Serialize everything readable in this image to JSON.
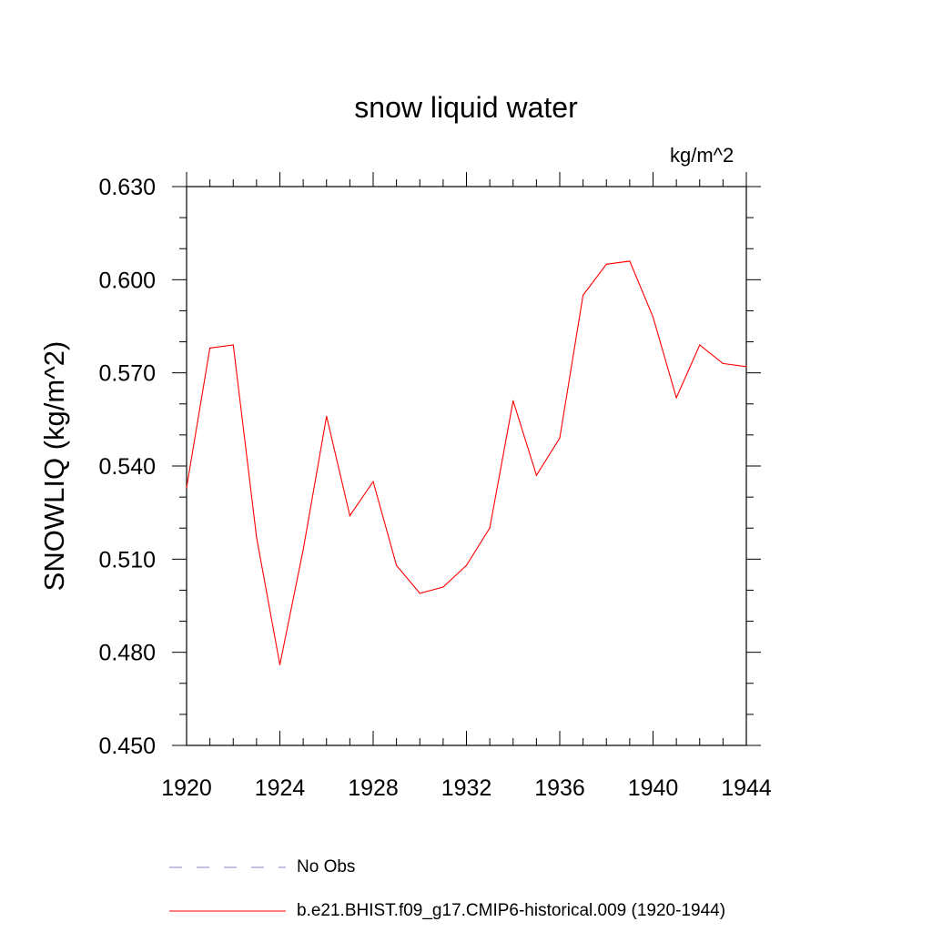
{
  "chart_data": {
    "type": "line",
    "title": "snow liquid water",
    "units": "kg/m^2",
    "ylabel": "SNOWLIQ  (kg/m^2)",
    "xlabel": "",
    "xlim": [
      1920,
      1944
    ],
    "ylim": [
      0.45,
      0.63
    ],
    "x_ticks": [
      "1920",
      "1924",
      "1928",
      "1932",
      "1936",
      "1940",
      "1944"
    ],
    "y_ticks": [
      "0.450",
      "0.480",
      "0.510",
      "0.540",
      "0.570",
      "0.600",
      "0.630"
    ],
    "x_tick_values": [
      1920,
      1924,
      1928,
      1932,
      1936,
      1940,
      1944
    ],
    "y_tick_values": [
      0.45,
      0.48,
      0.51,
      0.54,
      0.57,
      0.6,
      0.63
    ],
    "series": [
      {
        "name": "b.e21.BHIST.f09_g17.CMIP6-historical.009 (1920-1944)",
        "color": "#ff0000",
        "x": [
          1920,
          1921,
          1922,
          1923,
          1924,
          1925,
          1926,
          1927,
          1928,
          1929,
          1930,
          1931,
          1932,
          1933,
          1934,
          1935,
          1936,
          1937,
          1938,
          1939,
          1940,
          1941,
          1942,
          1943,
          1944
        ],
        "values": [
          0.533,
          0.578,
          0.579,
          0.517,
          0.476,
          0.513,
          0.556,
          0.524,
          0.535,
          0.508,
          0.499,
          0.501,
          0.508,
          0.52,
          0.561,
          0.537,
          0.549,
          0.595,
          0.605,
          0.606,
          0.588,
          0.562,
          0.579,
          0.573,
          0.572
        ]
      }
    ],
    "legend": [
      {
        "label": "No Obs",
        "style": "dashed",
        "color": "#8080c0"
      },
      {
        "label": "b.e21.BHIST.f09_g17.CMIP6-historical.009 (1920-1944)",
        "style": "solid",
        "color": "#ff0000"
      }
    ],
    "legend_position": "bottom",
    "grid": false
  }
}
